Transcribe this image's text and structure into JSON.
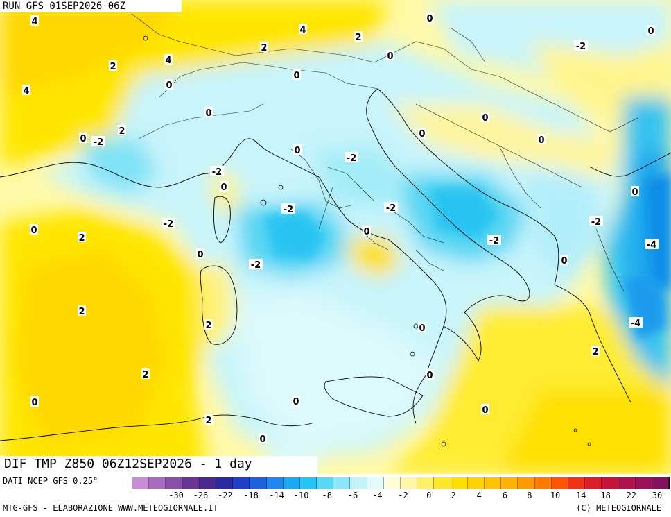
{
  "header": {
    "run_label": "RUN GFS 01SEP2026 06Z"
  },
  "title": {
    "text": "DIF TMP Z850 06Z12SEP2026 - 1 day"
  },
  "source": {
    "text": "DATI NCEP GFS 0.25°"
  },
  "footer": {
    "left": "MTG-GFS - ELABORAZIONE WWW.METEOGIORNALE.IT",
    "right": "(C) METEOGIORNALE"
  },
  "legend": {
    "tick_labels": [
      "-30",
      "-26",
      "-22",
      "-18",
      "-14",
      "-10",
      "-8",
      "-6",
      "-4",
      "-2",
      "0",
      "2",
      "4",
      "6",
      "8",
      "10",
      "14",
      "18",
      "22",
      "30"
    ],
    "colors": [
      "#c98bd6",
      "#a86bc0",
      "#8a4fa8",
      "#6a3494",
      "#4a2a8c",
      "#2c2aa0",
      "#1d3fc8",
      "#1f62e0",
      "#1e86ee",
      "#1aa9f2",
      "#22c6f4",
      "#54d8f6",
      "#8ae6f8",
      "#c2f2fa",
      "#e2fbfb",
      "#fffcd8",
      "#fff7a8",
      "#fff066",
      "#ffe72a",
      "#ffde00",
      "#ffd200",
      "#ffc300",
      "#ffb100",
      "#ff9a00",
      "#ff7a00",
      "#ff5400",
      "#f23214",
      "#dc1e28",
      "#c8143a",
      "#b0124c",
      "#9a1059",
      "#84105e"
    ]
  },
  "contour_labels": [
    {
      "v": "4"
    },
    {
      "v": "4"
    },
    {
      "v": "2"
    },
    {
      "v": "2"
    },
    {
      "v": "0"
    },
    {
      "v": "0"
    },
    {
      "v": "2"
    },
    {
      "v": "4"
    },
    {
      "v": "0"
    },
    {
      "v": "0"
    },
    {
      "v": "4"
    },
    {
      "v": "0"
    },
    {
      "v": "-2"
    },
    {
      "v": "2"
    },
    {
      "v": "0"
    },
    {
      "v": "0"
    },
    {
      "v": "-2"
    },
    {
      "v": "0"
    },
    {
      "v": "0"
    },
    {
      "v": "0"
    },
    {
      "v": "-2"
    },
    {
      "v": "0"
    },
    {
      "v": "-2"
    },
    {
      "v": "-2"
    },
    {
      "v": "-2"
    },
    {
      "v": "0"
    },
    {
      "v": "0"
    },
    {
      "v": "2"
    },
    {
      "v": "0"
    },
    {
      "v": "-2"
    },
    {
      "v": "-2"
    },
    {
      "v": "0"
    },
    {
      "v": "-2"
    },
    {
      "v": "-4"
    },
    {
      "v": "2"
    },
    {
      "v": "2"
    },
    {
      "v": "0"
    },
    {
      "v": "-4"
    },
    {
      "v": "2"
    },
    {
      "v": "0"
    },
    {
      "v": "0"
    },
    {
      "v": "0"
    },
    {
      "v": "2"
    },
    {
      "v": "0"
    },
    {
      "v": "0"
    }
  ]
}
